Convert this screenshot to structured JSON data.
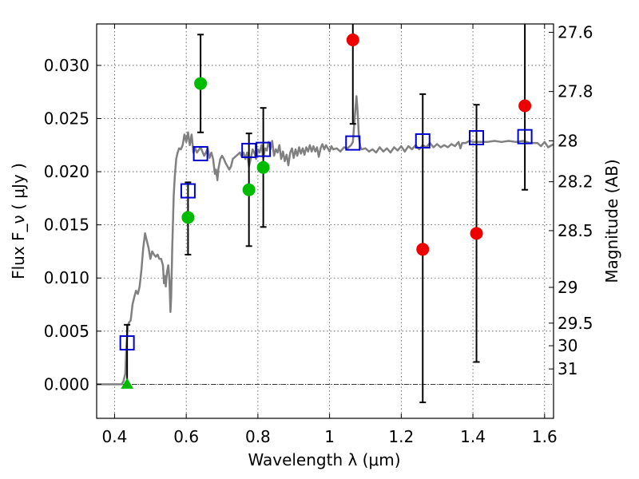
{
  "chart_data": {
    "type": "scatter",
    "xlabel": "Wavelength  λ (μm)",
    "ylabel": "Flux  F_ν  ( μJy )",
    "ylabel_right": "Magnitude (AB)",
    "xlim": [
      0.35,
      1.625
    ],
    "ylim": [
      -0.0032,
      0.0339
    ],
    "grid": true,
    "x_ticks": [
      {
        "value": 0.4,
        "label": "0.4"
      },
      {
        "value": 0.6,
        "label": "0.6"
      },
      {
        "value": 0.8,
        "label": "0.8"
      },
      {
        "value": 1.0,
        "label": "1"
      },
      {
        "value": 1.2,
        "label": "1.2"
      },
      {
        "value": 1.4,
        "label": "1.4"
      },
      {
        "value": 1.6,
        "label": "1.6"
      }
    ],
    "y_ticks": [
      {
        "value": 0.0,
        "label": "0.000"
      },
      {
        "value": 0.005,
        "label": "0.005"
      },
      {
        "value": 0.01,
        "label": "0.010"
      },
      {
        "value": 0.015,
        "label": "0.015"
      },
      {
        "value": 0.02,
        "label": "0.020"
      },
      {
        "value": 0.025,
        "label": "0.025"
      },
      {
        "value": 0.03,
        "label": "0.030"
      }
    ],
    "right_ticks": [
      {
        "value": 27.6,
        "label": "27.6"
      },
      {
        "value": 27.8,
        "label": "27.8"
      },
      {
        "value": 28.0,
        "label": "28"
      },
      {
        "value": 28.2,
        "label": "28.2"
      },
      {
        "value": 28.5,
        "label": "28.5"
      },
      {
        "value": 29.0,
        "label": "29"
      },
      {
        "value": 29.5,
        "label": "29.5"
      },
      {
        "value": 30.0,
        "label": "30"
      },
      {
        "value": 31.0,
        "label": "31"
      }
    ],
    "sed_color": "#808080",
    "sed": [
      [
        0.35,
        0.0
      ],
      [
        0.42,
        0.0
      ],
      [
        0.425,
        0.0003
      ],
      [
        0.43,
        0.001
      ],
      [
        0.433,
        0.0035
      ],
      [
        0.437,
        0.0055
      ],
      [
        0.44,
        0.0058
      ],
      [
        0.445,
        0.006
      ],
      [
        0.45,
        0.0075
      ],
      [
        0.455,
        0.0082
      ],
      [
        0.46,
        0.0088
      ],
      [
        0.465,
        0.0085
      ],
      [
        0.47,
        0.0092
      ],
      [
        0.475,
        0.0108
      ],
      [
        0.48,
        0.0128
      ],
      [
        0.485,
        0.0142
      ],
      [
        0.49,
        0.0135
      ],
      [
        0.495,
        0.0128
      ],
      [
        0.5,
        0.0118
      ],
      [
        0.505,
        0.0125
      ],
      [
        0.51,
        0.0122
      ],
      [
        0.515,
        0.012
      ],
      [
        0.52,
        0.0122
      ],
      [
        0.525,
        0.0118
      ],
      [
        0.53,
        0.0118
      ],
      [
        0.535,
        0.0112
      ],
      [
        0.538,
        0.0095
      ],
      [
        0.54,
        0.0102
      ],
      [
        0.543,
        0.0092
      ],
      [
        0.546,
        0.0105
      ],
      [
        0.55,
        0.0112
      ],
      [
        0.553,
        0.0098
      ],
      [
        0.556,
        0.0068
      ],
      [
        0.558,
        0.0082
      ],
      [
        0.561,
        0.013
      ],
      [
        0.565,
        0.0178
      ],
      [
        0.568,
        0.0195
      ],
      [
        0.572,
        0.0212
      ],
      [
        0.576,
        0.0218
      ],
      [
        0.58,
        0.0222
      ],
      [
        0.585,
        0.0221
      ],
      [
        0.59,
        0.0225
      ],
      [
        0.595,
        0.0235
      ],
      [
        0.6,
        0.0228
      ],
      [
        0.605,
        0.0237
      ],
      [
        0.61,
        0.0225
      ],
      [
        0.615,
        0.0235
      ],
      [
        0.62,
        0.0218
      ],
      [
        0.625,
        0.0222
      ],
      [
        0.63,
        0.0218
      ],
      [
        0.64,
        0.0223
      ],
      [
        0.65,
        0.0215
      ],
      [
        0.655,
        0.0218
      ],
      [
        0.66,
        0.0222
      ],
      [
        0.665,
        0.0213
      ],
      [
        0.67,
        0.0218
      ],
      [
        0.675,
        0.0212
      ],
      [
        0.68,
        0.0198
      ],
      [
        0.683,
        0.0202
      ],
      [
        0.687,
        0.0192
      ],
      [
        0.69,
        0.0203
      ],
      [
        0.695,
        0.0212
      ],
      [
        0.7,
        0.0215
      ],
      [
        0.705,
        0.0212
      ],
      [
        0.71,
        0.0208
      ],
      [
        0.72,
        0.0202
      ],
      [
        0.725,
        0.0205
      ],
      [
        0.73,
        0.0212
      ],
      [
        0.74,
        0.0215
      ],
      [
        0.75,
        0.0218
      ],
      [
        0.755,
        0.0214
      ],
      [
        0.76,
        0.0218
      ],
      [
        0.765,
        0.0212
      ],
      [
        0.77,
        0.0218
      ],
      [
        0.775,
        0.0205
      ],
      [
        0.78,
        0.0212
      ],
      [
        0.785,
        0.0221
      ],
      [
        0.79,
        0.0218
      ],
      [
        0.795,
        0.0212
      ],
      [
        0.8,
        0.0221
      ],
      [
        0.805,
        0.0218
      ],
      [
        0.81,
        0.0225
      ],
      [
        0.815,
        0.0213
      ],
      [
        0.82,
        0.0222
      ],
      [
        0.825,
        0.022
      ],
      [
        0.83,
        0.0228
      ],
      [
        0.835,
        0.0221
      ],
      [
        0.84,
        0.0229
      ],
      [
        0.845,
        0.0215
      ],
      [
        0.85,
        0.0221
      ],
      [
        0.855,
        0.0218
      ],
      [
        0.86,
        0.0225
      ],
      [
        0.865,
        0.0212
      ],
      [
        0.87,
        0.0219
      ],
      [
        0.875,
        0.021
      ],
      [
        0.88,
        0.0216
      ],
      [
        0.885,
        0.0206
      ],
      [
        0.89,
        0.0218
      ],
      [
        0.895,
        0.0222
      ],
      [
        0.9,
        0.0213
      ],
      [
        0.905,
        0.0221
      ],
      [
        0.91,
        0.0215
      ],
      [
        0.915,
        0.0223
      ],
      [
        0.92,
        0.0217
      ],
      [
        0.925,
        0.0222
      ],
      [
        0.93,
        0.0216
      ],
      [
        0.935,
        0.0223
      ],
      [
        0.94,
        0.0219
      ],
      [
        0.945,
        0.0225
      ],
      [
        0.95,
        0.0219
      ],
      [
        0.955,
        0.0224
      ],
      [
        0.96,
        0.0219
      ],
      [
        0.965,
        0.0223
      ],
      [
        0.97,
        0.0214
      ],
      [
        0.975,
        0.0222
      ],
      [
        0.98,
        0.0226
      ],
      [
        0.985,
        0.0221
      ],
      [
        0.99,
        0.0225
      ],
      [
        0.995,
        0.0222
      ],
      [
        1.0,
        0.0219
      ],
      [
        1.005,
        0.0224
      ],
      [
        1.01,
        0.0221
      ],
      [
        1.02,
        0.0222
      ],
      [
        1.03,
        0.0219
      ],
      [
        1.04,
        0.0223
      ],
      [
        1.05,
        0.0222
      ],
      [
        1.06,
        0.0225
      ],
      [
        1.065,
        0.0228
      ],
      [
        1.07,
        0.025
      ],
      [
        1.075,
        0.0271
      ],
      [
        1.078,
        0.0258
      ],
      [
        1.082,
        0.0232
      ],
      [
        1.086,
        0.0223
      ],
      [
        1.09,
        0.0221
      ],
      [
        1.1,
        0.0222
      ],
      [
        1.11,
        0.0219
      ],
      [
        1.12,
        0.0221
      ],
      [
        1.13,
        0.0218
      ],
      [
        1.14,
        0.0223
      ],
      [
        1.15,
        0.0219
      ],
      [
        1.16,
        0.0222
      ],
      [
        1.17,
        0.0218
      ],
      [
        1.18,
        0.0223
      ],
      [
        1.19,
        0.022
      ],
      [
        1.2,
        0.0224
      ],
      [
        1.21,
        0.0219
      ],
      [
        1.22,
        0.0224
      ],
      [
        1.23,
        0.0221
      ],
      [
        1.24,
        0.0225
      ],
      [
        1.25,
        0.0221
      ],
      [
        1.26,
        0.0225
      ],
      [
        1.27,
        0.0223
      ],
      [
        1.28,
        0.0227
      ],
      [
        1.29,
        0.0223
      ],
      [
        1.3,
        0.0226
      ],
      [
        1.31,
        0.0223
      ],
      [
        1.32,
        0.0225
      ],
      [
        1.33,
        0.0223
      ],
      [
        1.34,
        0.0226
      ],
      [
        1.35,
        0.0224
      ],
      [
        1.36,
        0.0228
      ],
      [
        1.365,
        0.0222
      ],
      [
        1.37,
        0.0227
      ],
      [
        1.38,
        0.0227
      ],
      [
        1.39,
        0.0229
      ],
      [
        1.4,
        0.0228
      ],
      [
        1.42,
        0.0228
      ],
      [
        1.44,
        0.0228
      ],
      [
        1.46,
        0.0229
      ],
      [
        1.48,
        0.0228
      ],
      [
        1.5,
        0.0229
      ],
      [
        1.52,
        0.0228
      ],
      [
        1.54,
        0.0229
      ],
      [
        1.56,
        0.0227
      ],
      [
        1.58,
        0.0227
      ],
      [
        1.59,
        0.0224
      ],
      [
        1.6,
        0.0228
      ],
      [
        1.61,
        0.0223
      ],
      [
        1.625,
        0.0226
      ]
    ],
    "model_points": [
      {
        "x": 0.435,
        "y": 0.0039
      },
      {
        "x": 0.605,
        "y": 0.0182
      },
      {
        "x": 0.64,
        "y": 0.0217
      },
      {
        "x": 0.775,
        "y": 0.022
      },
      {
        "x": 0.815,
        "y": 0.0221
      },
      {
        "x": 1.065,
        "y": 0.0227
      },
      {
        "x": 1.26,
        "y": 0.0229
      },
      {
        "x": 1.41,
        "y": 0.0232
      },
      {
        "x": 1.545,
        "y": 0.0233
      }
    ],
    "model_color": "#0000cc",
    "observed_points": [
      {
        "x": 0.435,
        "y": 0.0,
        "err_low": 0.0,
        "err_high": 0.0056,
        "color": "#00bb00",
        "marker": "triangle"
      },
      {
        "x": 0.605,
        "y": 0.0157,
        "err_low": 0.0122,
        "err_high": 0.019,
        "color": "#00bb00",
        "marker": "circle"
      },
      {
        "x": 0.64,
        "y": 0.0283,
        "err_low": 0.0237,
        "err_high": 0.0329,
        "color": "#00bb00",
        "marker": "circle"
      },
      {
        "x": 0.775,
        "y": 0.0183,
        "err_low": 0.013,
        "err_high": 0.0236,
        "color": "#00bb00",
        "marker": "circle"
      },
      {
        "x": 0.815,
        "y": 0.0204,
        "err_low": 0.0148,
        "err_high": 0.026,
        "color": "#00bb00",
        "marker": "circle"
      },
      {
        "x": 1.065,
        "y": 0.0324,
        "err_low": 0.0245,
        "err_high": 0.0339,
        "color": "#ee0000",
        "marker": "circle"
      },
      {
        "x": 1.26,
        "y": 0.0127,
        "err_low": -0.0017,
        "err_high": 0.0273,
        "color": "#ee0000",
        "marker": "circle"
      },
      {
        "x": 1.41,
        "y": 0.0142,
        "err_low": 0.0021,
        "err_high": 0.0263,
        "color": "#ee0000",
        "marker": "circle"
      },
      {
        "x": 1.545,
        "y": 0.0262,
        "err_low": 0.0183,
        "err_high": 0.0339,
        "color": "#ee0000",
        "marker": "circle"
      }
    ],
    "zero_line": 0.0
  }
}
